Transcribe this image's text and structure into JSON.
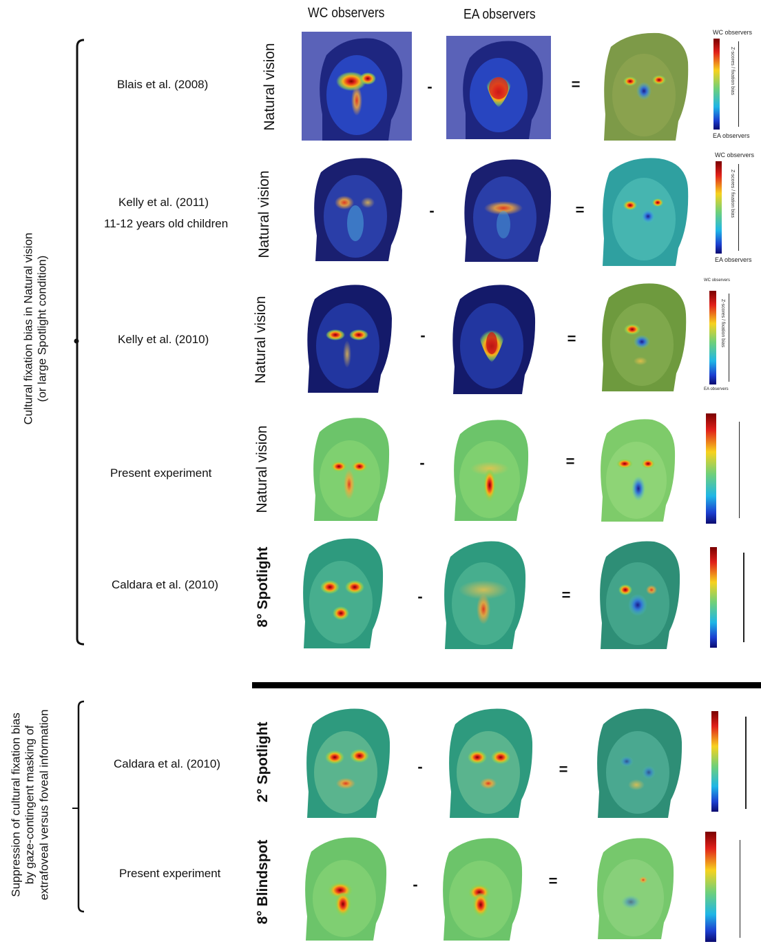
{
  "figure": {
    "column_headers": {
      "wc": "WC observers",
      "ea": "EA observers"
    },
    "group_labels": {
      "top": [
        "Cultural fixation bias in Natural vision",
        "(or large Spotlight condition)"
      ],
      "bottom": [
        "Suppression of cultural fixation bias",
        "by gaze-contingent masking of",
        "extrafoveal versus foveal information"
      ]
    },
    "operators": {
      "minus": "-",
      "equals": "="
    },
    "colorbar_labels": {
      "top": "WC observers",
      "bottom": "EA observers",
      "axis": "Z-scores / fixation bias"
    },
    "colors": {
      "blue_bg": "#2a35a8",
      "green_bg": "#6fc46a",
      "teal_bg": "#3aa38a",
      "hot": "#d8261c"
    },
    "rows": [
      {
        "study": "Blais et al. (2008)",
        "condition": "Natural vision",
        "style": "blue"
      },
      {
        "study": "Kelly et al. (2011)",
        "study_line2": "11-12 years old children",
        "condition": "Natural vision",
        "style": "blue"
      },
      {
        "study": "Kelly et al. (2010)",
        "condition": "Natural vision",
        "style": "blue"
      },
      {
        "study": "Present experiment",
        "condition": "Natural vision",
        "style": "green"
      },
      {
        "study": "Caldara et al. (2010)",
        "condition": "8° Spotlight",
        "style": "teal"
      },
      {
        "study": "Caldara et al. (2010)",
        "condition": "2° Spotlight",
        "style": "teal"
      },
      {
        "study": "Present experiment",
        "condition": "8° Blindspot",
        "style": "green"
      }
    ]
  }
}
